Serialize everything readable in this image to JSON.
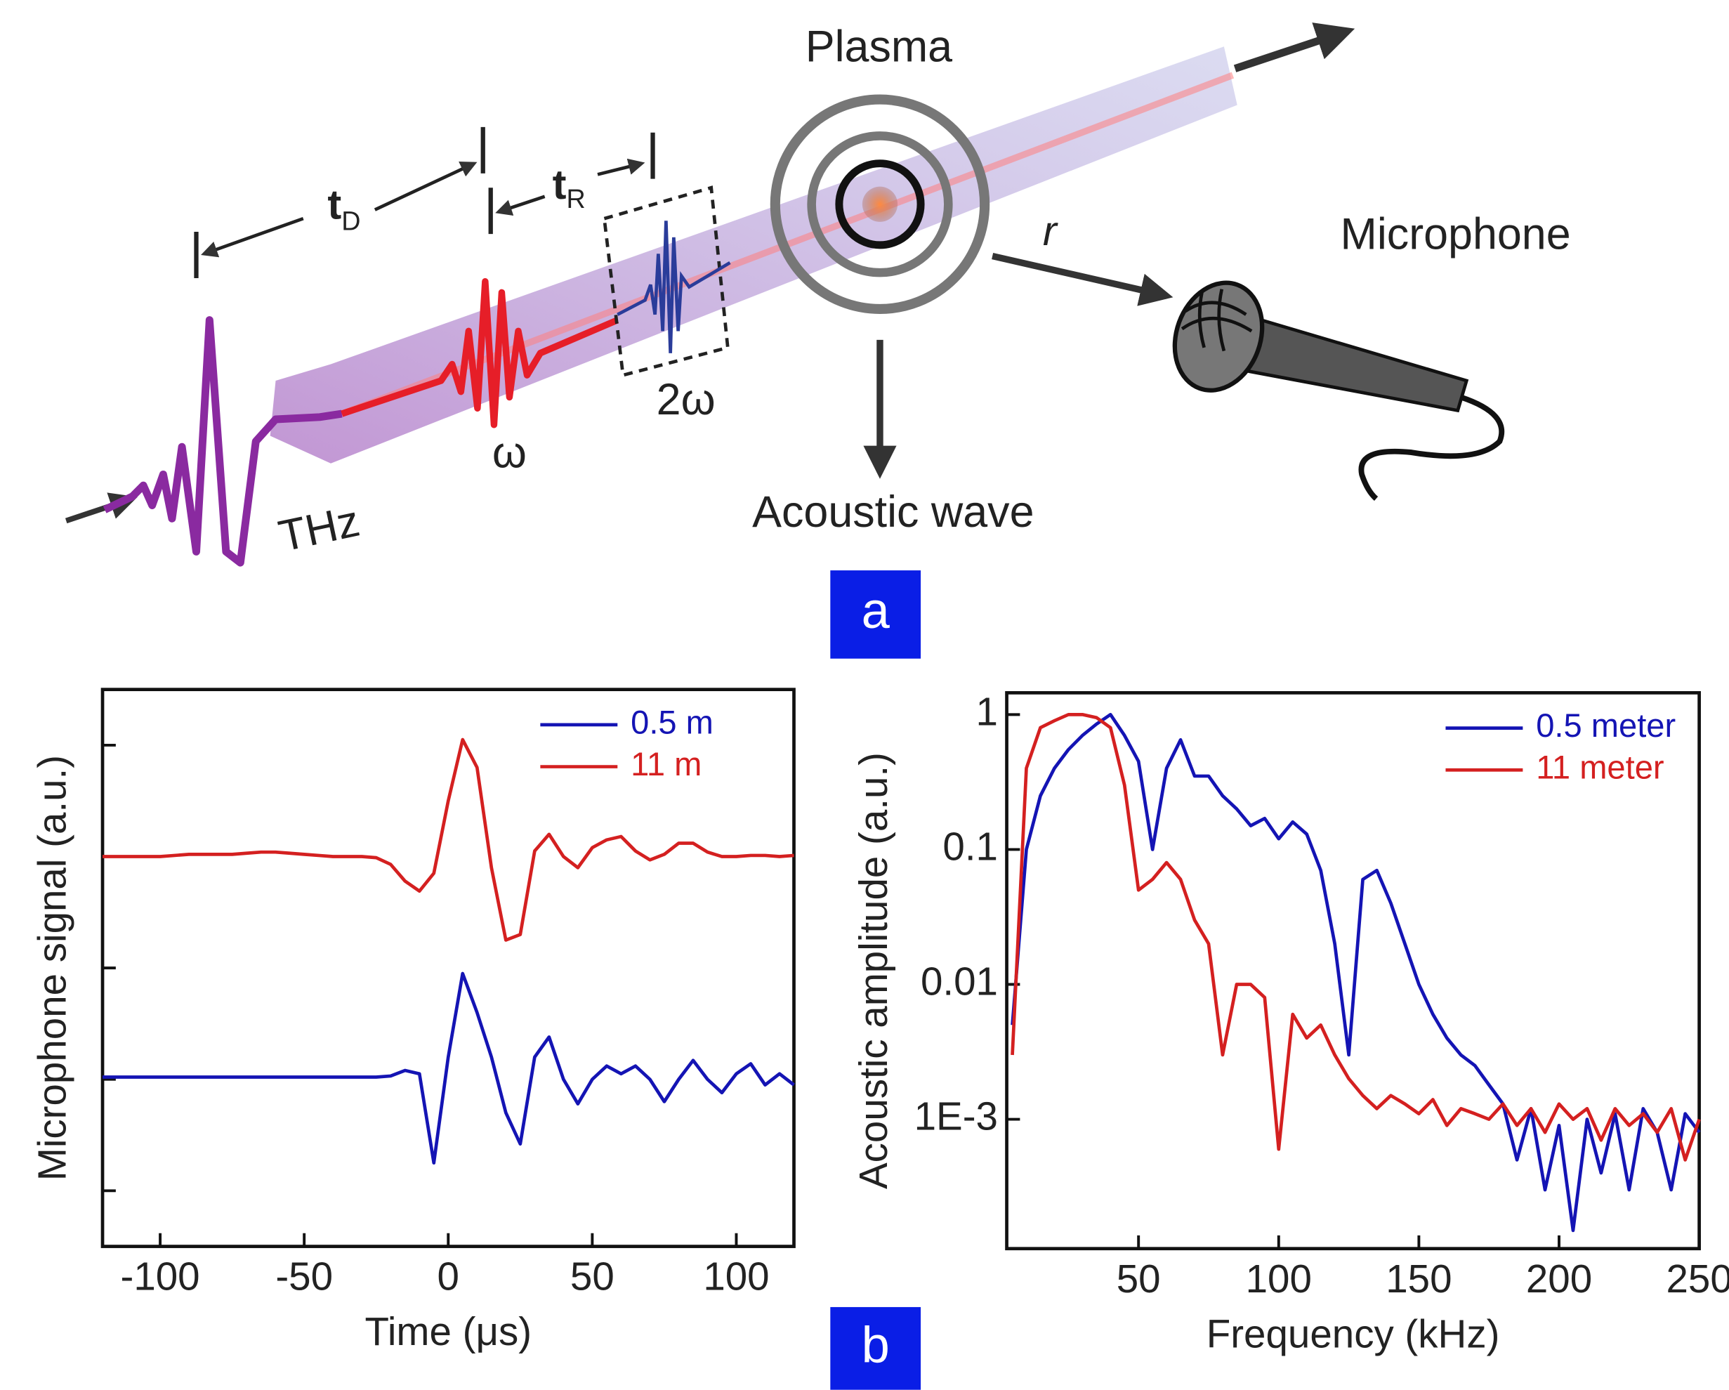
{
  "diagram": {
    "labels": {
      "plasma": "Plasma",
      "microphone": "Microphone",
      "acoustic_wave": "Acoustic wave",
      "r": "r",
      "t_d": {
        "text": "t",
        "sub": "D"
      },
      "t_r": {
        "text": "t",
        "sub": "R"
      },
      "omega": "ω",
      "two_omega": "2ω",
      "thz": "THz"
    },
    "panels": [
      "a",
      "b"
    ]
  },
  "chart_data": [
    {
      "type": "line",
      "xlabel": "Time (μs)",
      "ylabel": "Microphone signal (a.u.)",
      "xlim": [
        -120,
        120
      ],
      "xticks": [
        -100,
        -50,
        0,
        50,
        100
      ],
      "ylim": [
        -0.5,
        4.5
      ],
      "yticks": [
        0,
        1,
        2,
        3,
        4
      ],
      "ytick_labels": false,
      "yscale": "linear",
      "legend": "upper right",
      "x": [
        -120,
        -115,
        -110,
        -105,
        -100,
        -95,
        -90,
        -85,
        -80,
        -75,
        -70,
        -65,
        -60,
        -55,
        -50,
        -45,
        -40,
        -35,
        -30,
        -25,
        -20,
        -15,
        -10,
        -5,
        0,
        5,
        10,
        15,
        20,
        25,
        30,
        35,
        40,
        45,
        50,
        55,
        60,
        65,
        70,
        75,
        80,
        85,
        90,
        95,
        100,
        105,
        110,
        115,
        120
      ],
      "series": [
        {
          "name": "0.5 m",
          "color": "#1414b4",
          "values": [
            1.02,
            1.02,
            1.02,
            1.02,
            1.02,
            1.02,
            1.02,
            1.02,
            1.02,
            1.02,
            1.02,
            1.02,
            1.02,
            1.02,
            1.02,
            1.02,
            1.02,
            1.02,
            1.02,
            1.02,
            1.03,
            1.08,
            1.05,
            0.25,
            1.2,
            1.95,
            1.6,
            1.2,
            0.7,
            0.42,
            1.2,
            1.38,
            1.0,
            0.78,
            1.0,
            1.12,
            1.05,
            1.12,
            1.0,
            0.8,
            1.0,
            1.17,
            1.0,
            0.88,
            1.05,
            1.14,
            0.95,
            1.05,
            0.95
          ]
        },
        {
          "name": "11 m",
          "color": "#d42020",
          "values": [
            3.0,
            3.0,
            3.0,
            3.0,
            3.0,
            3.01,
            3.02,
            3.02,
            3.02,
            3.02,
            3.03,
            3.04,
            3.04,
            3.03,
            3.02,
            3.01,
            3.0,
            3.0,
            3.0,
            2.99,
            2.93,
            2.78,
            2.69,
            2.85,
            3.5,
            4.05,
            3.8,
            2.9,
            2.25,
            2.3,
            3.05,
            3.2,
            3.0,
            2.9,
            3.08,
            3.15,
            3.18,
            3.05,
            2.97,
            3.02,
            3.12,
            3.12,
            3.04,
            3.0,
            3.0,
            3.01,
            3.01,
            3.0,
            3.01
          ]
        }
      ]
    },
    {
      "type": "line",
      "xlabel": "Frequency (kHz)",
      "ylabel": "Acoustic amplitude (a.u.)",
      "xlim": [
        3,
        250
      ],
      "xticks": [
        50,
        100,
        150,
        200,
        250
      ],
      "ylim": [
        0.00011,
        1.45
      ],
      "yticks": [
        1,
        0.1,
        0.01,
        {
          "value": 0.001,
          "label": "1E-3"
        }
      ],
      "ytick_labels": true,
      "yscale": "log",
      "legend": "upper right",
      "x": [
        5,
        10,
        15,
        20,
        25,
        30,
        35,
        40,
        45,
        50,
        55,
        60,
        65,
        70,
        75,
        80,
        85,
        90,
        95,
        100,
        105,
        110,
        115,
        120,
        125,
        130,
        135,
        140,
        145,
        150,
        155,
        160,
        165,
        170,
        175,
        180,
        185,
        190,
        195,
        200,
        205,
        210,
        215,
        220,
        225,
        230,
        235,
        240,
        245,
        250
      ],
      "series": [
        {
          "name": "0.5 meter",
          "color": "#1414b4",
          "values": [
            0.005,
            0.1,
            0.25,
            0.4,
            0.55,
            0.7,
            0.85,
            1.0,
            0.7,
            0.45,
            0.1,
            0.4,
            0.65,
            0.35,
            0.35,
            0.25,
            0.2,
            0.15,
            0.17,
            0.12,
            0.16,
            0.13,
            0.07,
            0.02,
            0.003,
            0.06,
            0.07,
            0.04,
            0.02,
            0.01,
            0.006,
            0.004,
            0.003,
            0.0025,
            0.0018,
            0.0013,
            0.0005,
            0.0012,
            0.0003,
            0.0009,
            0.00015,
            0.001,
            0.0004,
            0.0011,
            0.0003,
            0.0012,
            0.0008,
            0.0003,
            0.0011,
            0.0008
          ]
        },
        {
          "name": "11 meter",
          "color": "#d42020",
          "values": [
            0.003,
            0.4,
            0.8,
            0.9,
            1.0,
            1.0,
            0.95,
            0.8,
            0.3,
            0.05,
            0.06,
            0.08,
            0.06,
            0.03,
            0.02,
            0.003,
            0.01,
            0.01,
            0.008,
            0.0006,
            0.006,
            0.004,
            0.005,
            0.003,
            0.002,
            0.0015,
            0.0012,
            0.0015,
            0.0013,
            0.0011,
            0.0014,
            0.0009,
            0.0012,
            0.0011,
            0.001,
            0.0013,
            0.0009,
            0.0012,
            0.0008,
            0.0013,
            0.001,
            0.0012,
            0.0007,
            0.0012,
            0.0009,
            0.0011,
            0.0008,
            0.0012,
            0.0005,
            0.001
          ]
        }
      ]
    }
  ]
}
